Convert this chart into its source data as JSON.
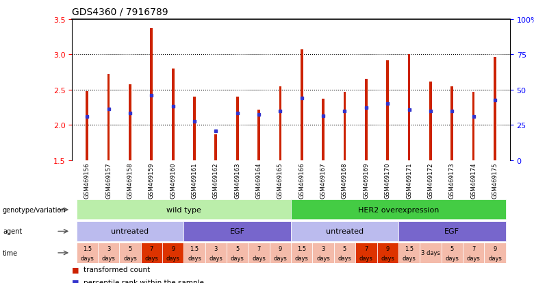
{
  "title": "GDS4360 / 7916789",
  "sample_ids": [
    "GSM469156",
    "GSM469157",
    "GSM469158",
    "GSM469159",
    "GSM469160",
    "GSM469161",
    "GSM469162",
    "GSM469163",
    "GSM469164",
    "GSM469165",
    "GSM469166",
    "GSM469167",
    "GSM469168",
    "GSM469169",
    "GSM469170",
    "GSM469171",
    "GSM469172",
    "GSM469173",
    "GSM469174",
    "GSM469175"
  ],
  "bar_heights": [
    2.48,
    2.72,
    2.58,
    3.37,
    2.8,
    2.4,
    1.87,
    2.4,
    2.22,
    2.55,
    3.07,
    2.37,
    2.47,
    2.65,
    2.92,
    3.0,
    2.62,
    2.55,
    2.47,
    2.97
  ],
  "blue_dot_positions": [
    2.12,
    2.23,
    2.17,
    2.42,
    2.27,
    2.05,
    1.92,
    2.17,
    2.15,
    2.2,
    2.38,
    2.13,
    2.2,
    2.25,
    2.3,
    2.22,
    2.2,
    2.2,
    2.12,
    2.35
  ],
  "ylim_left": [
    1.5,
    3.5
  ],
  "ylim_right": [
    0,
    100
  ],
  "yticks_left": [
    1.5,
    2.0,
    2.5,
    3.0,
    3.5
  ],
  "yticks_right": [
    0,
    25,
    50,
    75,
    100
  ],
  "ytick_labels_right": [
    "0",
    "25",
    "50",
    "75",
    "100%"
  ],
  "bar_color": "#cc2200",
  "blue_color": "#3333cc",
  "genotype_groups": [
    {
      "label": "wild type",
      "start": 0,
      "end": 9,
      "color": "#bbeeaa"
    },
    {
      "label": "HER2 overexpression",
      "start": 10,
      "end": 19,
      "color": "#44cc44"
    }
  ],
  "agent_groups": [
    {
      "label": "untreated",
      "start": 0,
      "end": 4,
      "color": "#bbbbee"
    },
    {
      "label": "EGF",
      "start": 5,
      "end": 9,
      "color": "#7766cc"
    },
    {
      "label": "untreated",
      "start": 10,
      "end": 14,
      "color": "#bbbbee"
    },
    {
      "label": "EGF",
      "start": 15,
      "end": 19,
      "color": "#7766cc"
    }
  ],
  "time_labels": [
    "1.5\ndays",
    "3\ndays",
    "5\ndays",
    "7\ndays",
    "9\ndays",
    "1.5\ndays",
    "3\ndays",
    "5\ndays",
    "7\ndays",
    "9\ndays",
    "1.5\ndays",
    "3\ndays",
    "5\ndays",
    "7\ndays",
    "9\ndays",
    "1.5\ndays",
    "3 days",
    "5\ndays",
    "7\ndays",
    "9\ndays"
  ],
  "time_colors": [
    "#f4bbaa",
    "#f4bbaa",
    "#f4bbaa",
    "#dd3300",
    "#dd3300",
    "#f4bbaa",
    "#f4bbaa",
    "#f4bbaa",
    "#f4bbaa",
    "#f4bbaa",
    "#f4bbaa",
    "#f4bbaa",
    "#f4bbaa",
    "#dd3300",
    "#dd3300",
    "#f4bbaa",
    "#f4bbaa",
    "#f4bbaa",
    "#f4bbaa",
    "#f4bbaa"
  ],
  "row_labels": [
    "genotype/variation",
    "agent",
    "time"
  ],
  "legend_items": [
    {
      "color": "#cc2200",
      "label": "transformed count"
    },
    {
      "color": "#3333cc",
      "label": "percentile rank within the sample"
    }
  ]
}
